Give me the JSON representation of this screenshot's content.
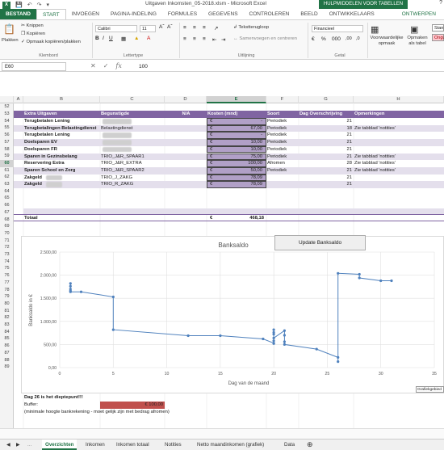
{
  "window": {
    "title": "Uitgaven Inkomsten_05-2018.xlsm - Microsoft Excel",
    "contextual_group": "HULPMIDDELEN VOOR TABELLEN"
  },
  "ribbon_tabs": [
    "BESTAND",
    "START",
    "INVOEGEN",
    "PAGINA-INDELING",
    "FORMULES",
    "GEGEVENS",
    "CONTROLEREN",
    "BEELD",
    "ONTWIKKELAARS",
    "ONTWERPEN"
  ],
  "ribbon": {
    "paste_label": "Plakken",
    "cut_label": "Knippen",
    "copy_label": "Kopiëren",
    "format_painter_label": "Opmaak kopiëren/plakken",
    "clipboard_group": "Klembord",
    "font_name": "Calibri",
    "font_size": "11",
    "font_group": "Lettertype",
    "wrap_text": "Tekstterugloop",
    "merge_center": "Samenvoegen en centreren",
    "alignment_group": "Uitlijning",
    "number_format": "Financieel",
    "number_group": "Getal",
    "conditional_format": "Voorwaardelijke opmaak",
    "format_as_table": "Opmaken als tabel",
    "style_standard": "Stan",
    "style_bad": "Ongu"
  },
  "formula_bar": {
    "name_box": "E60",
    "value": "100"
  },
  "columns": [
    "A",
    "B",
    "C",
    "D",
    "E",
    "F",
    "G",
    "H"
  ],
  "selected_column": "E",
  "rows": [
    "52",
    "53",
    "54",
    "55",
    "56",
    "57",
    "58",
    "59",
    "60",
    "61",
    "62",
    "63",
    "64",
    "65",
    "66",
    "67",
    "68",
    "69",
    "70",
    "71",
    "72",
    "73",
    "74",
    "75",
    "76",
    "77",
    "78",
    "79",
    "80",
    "81",
    "82",
    "83",
    "84",
    "85",
    "86",
    "87",
    "88",
    "89"
  ],
  "selected_row": "60",
  "table": {
    "headers": [
      "Extra Uitgaven",
      "Begunstigde",
      "N/A",
      "Kosten (mnd)",
      "Soort",
      "Dag Overschrijving",
      "Opmerkingen"
    ],
    "rows": [
      {
        "name": "Terugbetalen Lening",
        "benef": "",
        "currency": "€",
        "amount": "-",
        "soort": "Periodiek",
        "dag": "21",
        "note": ""
      },
      {
        "name": "Terugbetalingen Belastingdienst",
        "benef": "Belastingdienst",
        "currency": "€",
        "amount": "67,00",
        "soort": "Periodiek",
        "dag": "18",
        "note": "Zie tabblad 'notities'"
      },
      {
        "name": "Terugbetalen Lening",
        "benef": "",
        "currency": "€",
        "amount": "-",
        "soort": "Periodiek",
        "dag": "21",
        "note": ""
      },
      {
        "name": "Doelsparen EV",
        "benef": "",
        "currency": "€",
        "amount": "10,00",
        "soort": "Periodiek",
        "dag": "21",
        "note": ""
      },
      {
        "name": "Doelsparen FR",
        "benef": "",
        "currency": "€",
        "amount": "10,00",
        "soort": "Periodiek",
        "dag": "21",
        "note": ""
      },
      {
        "name": "Sparen in Gezinsbelang",
        "benef": "TRIO_J&R_SPAAR1",
        "currency": "€",
        "amount": "75,00",
        "soort": "Periodiek",
        "dag": "21",
        "note": "Zie tabblad 'notities'"
      },
      {
        "name": "Reservering Extra",
        "benef": "TRIO_J&R_EXTRA",
        "currency": "€",
        "amount": "100,00",
        "soort": "Afromen",
        "dag": "28",
        "note": "Zie tabblad 'notities'"
      },
      {
        "name": "Sparen School en Zorg",
        "benef": "TRIO_J&R_SPAAR2",
        "currency": "€",
        "amount": "50,00",
        "soort": "Periodiek",
        "dag": "21",
        "note": "Zie tabblad 'notities'"
      },
      {
        "name": "Zakgeld",
        "benef": "TRIO_J_ZAKG",
        "currency": "€",
        "amount": "78,09",
        "soort": "",
        "dag": "21",
        "note": ""
      },
      {
        "name": "Zakgeld",
        "benef": "TRIO_R_ZAKG",
        "currency": "€",
        "amount": "78,09",
        "soort": "",
        "dag": "21",
        "note": ""
      }
    ],
    "total_label": "Totaal",
    "total_currency": "€",
    "total_amount": "468,18"
  },
  "update_button": "Update Banksaldo",
  "chart_tooltip": "Grafiekgebied",
  "footer": {
    "low_point": "Dag 26 is het dieptepunt!!!",
    "buffer_label": "Buffer:",
    "buffer_value": "€ 100,00",
    "note": "(minimale hoogte bankrekening - moet gelijk zijn met bedrag afromen)"
  },
  "sheet_tabs": [
    "Overzichten",
    "Inkomen",
    "Inkomen totaal",
    "Notities",
    "Netto maandinkomen (grafiek)",
    "Data"
  ],
  "active_sheet": "Overzichten",
  "colors": {
    "accent": "#217346",
    "header_purple": "#8064a2",
    "band": "#e4dfec",
    "series": "#4f81bd",
    "buffer_red": "#c0504d"
  },
  "chart_data": {
    "type": "scatter",
    "title": "Banksaldo",
    "xlabel": "Dag van de maand",
    "ylabel": "Banksaldo in €",
    "xlim": [
      0,
      35
    ],
    "ylim": [
      0,
      2500
    ],
    "xticks": [
      "0",
      "5",
      "10",
      "15",
      "20",
      "25",
      "30",
      "35"
    ],
    "yticks": [
      "0,00",
      "500,00",
      "1.000,00",
      "1.500,00",
      "2.000,00",
      "2.500,00"
    ],
    "grid": true,
    "series": [
      {
        "x": [
          1,
          1,
          1,
          1,
          1,
          2,
          5,
          5,
          12,
          15,
          19,
          20,
          20,
          20,
          20,
          20,
          20,
          20,
          21,
          21,
          21,
          21,
          24,
          26,
          26,
          26,
          28,
          28,
          30,
          31
        ],
        "y": [
          1820,
          1760,
          1700,
          1660,
          1640,
          1640,
          1530,
          820,
          690,
          690,
          620,
          530,
          520,
          760,
          720,
          580,
          820,
          640,
          800,
          700,
          560,
          500,
          400,
          220,
          130,
          2040,
          2020,
          1940,
          1880,
          1880
        ]
      }
    ]
  }
}
